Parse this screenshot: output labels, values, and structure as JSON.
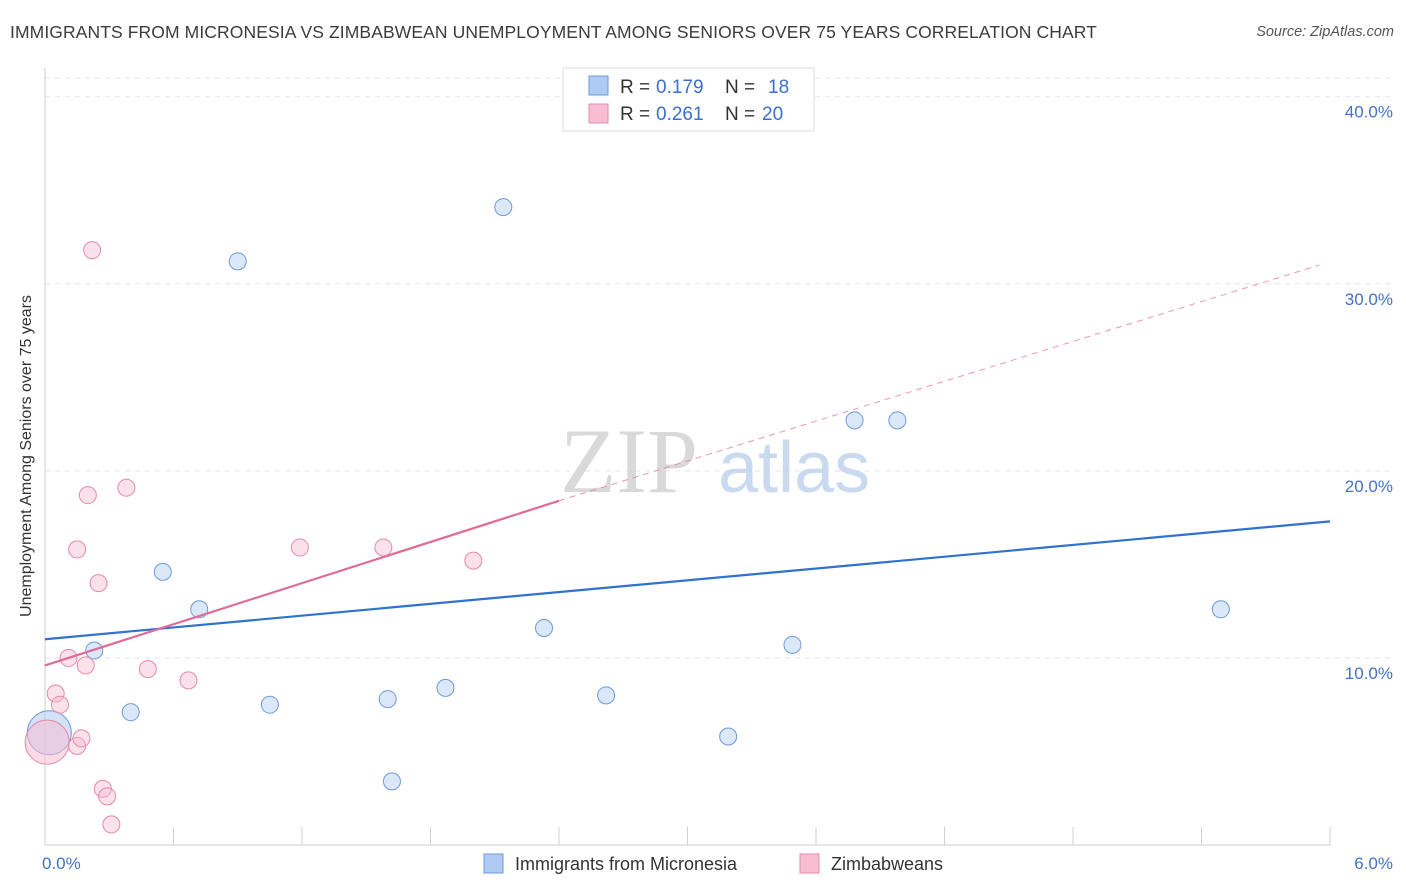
{
  "header": {
    "title": "IMMIGRANTS FROM MICRONESIA VS ZIMBABWEAN UNEMPLOYMENT AMONG SENIORS OVER 75 YEARS CORRELATION CHART",
    "source": "Source: ZipAtlas.com"
  },
  "watermark": {
    "zip": "ZIP",
    "atlas": "atlas"
  },
  "chart_data": {
    "type": "scatter",
    "ylabel": "Unemployment Among Seniors over 75 years",
    "xlim": [
      0,
      6
    ],
    "ylim": [
      0,
      41
    ],
    "x_tick_labels": [
      "0.0%",
      "6.0%"
    ],
    "y_ticks": [
      10,
      20,
      30,
      40
    ],
    "y_tick_labels": [
      "10.0%",
      "20.0%",
      "30.0%",
      "40.0%"
    ],
    "grid": true,
    "legend_top": [
      {
        "r_label": "R = ",
        "r_value": "0.179",
        "n_label": "N = ",
        "n_value": "18",
        "color": "#aecbf3",
        "stroke": "#6f9ad8"
      },
      {
        "r_label": "R = ",
        "r_value": "0.261",
        "n_label": "N = ",
        "n_value": "20",
        "color": "#f7bdd0",
        "stroke": "#e68aa8"
      }
    ],
    "series": [
      {
        "name": "Immigrants from Micronesia",
        "color": "#aecbf3",
        "stroke": "#6f9ad8",
        "line_color": "#2f72d0",
        "trend": {
          "x": [
            0,
            6
          ],
          "y": [
            11.0,
            17.3
          ]
        },
        "points": [
          {
            "x": 0.02,
            "y": 6.0,
            "big": true
          },
          {
            "x": 0.23,
            "y": 10.4
          },
          {
            "x": 0.4,
            "y": 7.1
          },
          {
            "x": 0.55,
            "y": 14.6
          },
          {
            "x": 0.72,
            "y": 12.6
          },
          {
            "x": 0.9,
            "y": 31.2
          },
          {
            "x": 1.05,
            "y": 7.5
          },
          {
            "x": 1.6,
            "y": 7.8
          },
          {
            "x": 1.62,
            "y": 3.4
          },
          {
            "x": 1.87,
            "y": 8.4
          },
          {
            "x": 2.14,
            "y": 34.1
          },
          {
            "x": 2.33,
            "y": 11.6
          },
          {
            "x": 2.62,
            "y": 8.0
          },
          {
            "x": 3.19,
            "y": 5.8
          },
          {
            "x": 3.49,
            "y": 10.7
          },
          {
            "x": 3.78,
            "y": 22.7
          },
          {
            "x": 3.98,
            "y": 22.7
          },
          {
            "x": 5.49,
            "y": 12.6
          }
        ]
      },
      {
        "name": "Zimbabweans",
        "color": "#f7bdd0",
        "stroke": "#e68aa8",
        "line_color": "#e06b95",
        "trend_solid": {
          "x": [
            0,
            2.4
          ],
          "y": [
            9.6,
            18.4
          ]
        },
        "trend_dashed": {
          "x": [
            2.4,
            5.95
          ],
          "y": [
            18.4,
            31.0
          ]
        },
        "points": [
          {
            "x": 0.01,
            "y": 5.5,
            "big": true
          },
          {
            "x": 0.05,
            "y": 8.1
          },
          {
            "x": 0.07,
            "y": 7.5
          },
          {
            "x": 0.11,
            "y": 10.0
          },
          {
            "x": 0.15,
            "y": 5.3
          },
          {
            "x": 0.17,
            "y": 5.7
          },
          {
            "x": 0.15,
            "y": 15.8
          },
          {
            "x": 0.19,
            "y": 9.6
          },
          {
            "x": 0.2,
            "y": 18.7
          },
          {
            "x": 0.22,
            "y": 31.8
          },
          {
            "x": 0.25,
            "y": 14.0
          },
          {
            "x": 0.27,
            "y": 3.0
          },
          {
            "x": 0.29,
            "y": 2.6
          },
          {
            "x": 0.31,
            "y": 1.1
          },
          {
            "x": 0.38,
            "y": 19.1
          },
          {
            "x": 0.48,
            "y": 9.4
          },
          {
            "x": 0.67,
            "y": 8.8
          },
          {
            "x": 1.19,
            "y": 15.9
          },
          {
            "x": 1.58,
            "y": 15.9
          },
          {
            "x": 2.0,
            "y": 15.2
          }
        ]
      }
    ]
  }
}
